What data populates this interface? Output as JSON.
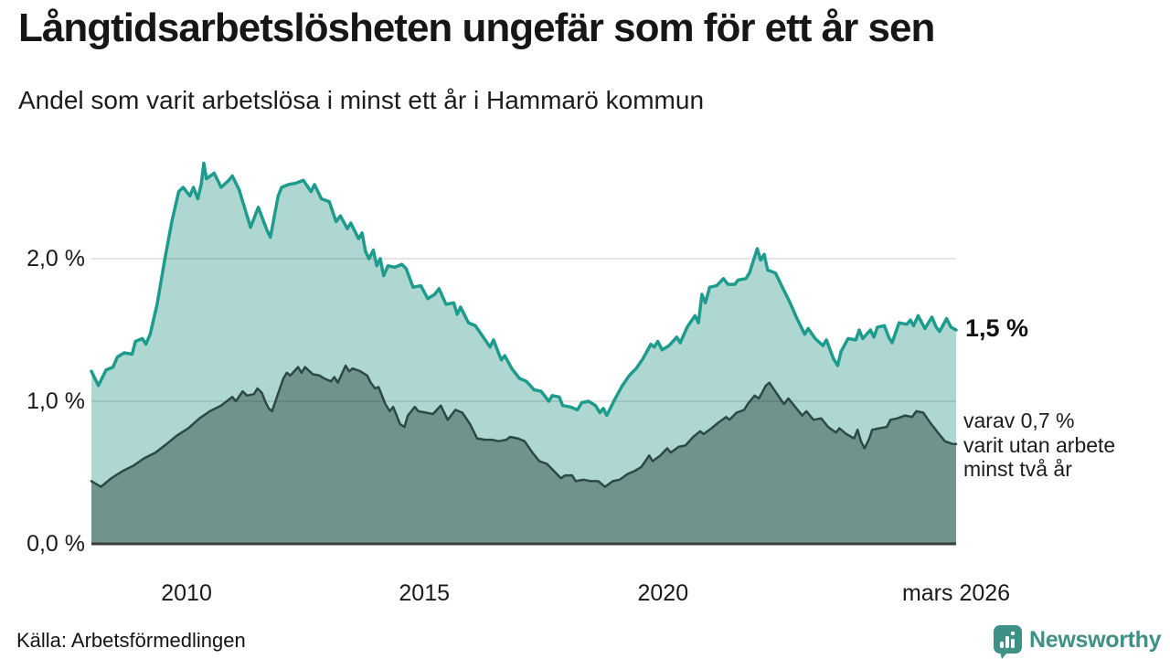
{
  "header": {
    "title": "Långtidsarbetslösheten ungefär som för ett år sen",
    "subtitle": "Andel som varit arbetslösa i minst ett år i Hammarö kommun"
  },
  "annotations": {
    "latest": {
      "label": "1,5 %"
    },
    "secondary": {
      "lines": [
        "varav 0,7 %",
        "varit utan arbete",
        "minst två år"
      ]
    }
  },
  "footer": {
    "source": "Källa: Arbetsförmedlingen",
    "brand": "Newsworthy"
  },
  "colors": {
    "line_one_year": "#1d9c8d",
    "fill_one_year": "#afd7d1",
    "line_two_year": "#2d4945",
    "fill_two_year": "#70948c",
    "gridline": "rgba(0,0,0,0.13)",
    "baseline": "#3b3b3b",
    "brand_teal": "#3f9086",
    "text": "#1a1a1a"
  },
  "chart_data": {
    "type": "area",
    "title": "Långtidsarbetslösheten ungefär som för ett år sen",
    "subtitle": "Andel som varit arbetslösa i minst ett år i Hammarö kommun",
    "xlabel": "",
    "ylabel": "",
    "x_range": [
      "januari 2008",
      "mars 2026"
    ],
    "ylim": [
      0,
      2.8
    ],
    "grid": true,
    "legend_position": "none",
    "y_ticks": [
      {
        "label": "0,0 %",
        "value": 0
      },
      {
        "label": "1,0 %",
        "value": 1
      },
      {
        "label": "2,0 %",
        "value": 2
      }
    ],
    "x_ticks": [
      {
        "label": "2010",
        "t": 0.11
      },
      {
        "label": "2015",
        "t": 0.385
      },
      {
        "label": "2020",
        "t": 0.661
      },
      {
        "label": "mars 2026",
        "t": 1.0
      }
    ],
    "series": [
      {
        "name": "Andel arbetslösa minst ett år",
        "latest_value": "1,5 %",
        "color": "#1d9c8d",
        "fill": "#afd7d1",
        "stroke_width": 3.5,
        "points": [
          [
            0,
            1.21
          ],
          [
            0.008,
            1.11
          ],
          [
            0.017,
            1.22
          ],
          [
            0.025,
            1.24
          ],
          [
            0.03,
            1.31
          ],
          [
            0.038,
            1.34
          ],
          [
            0.047,
            1.33
          ],
          [
            0.051,
            1.42
          ],
          [
            0.059,
            1.44
          ],
          [
            0.063,
            1.4
          ],
          [
            0.068,
            1.47
          ],
          [
            0.076,
            1.68
          ],
          [
            0.085,
            2
          ],
          [
            0.093,
            2.26
          ],
          [
            0.101,
            2.47
          ],
          [
            0.106,
            2.5
          ],
          [
            0.114,
            2.44
          ],
          [
            0.118,
            2.5
          ],
          [
            0.123,
            2.42
          ],
          [
            0.127,
            2.52
          ],
          [
            0.13,
            2.67
          ],
          [
            0.133,
            2.56
          ],
          [
            0.142,
            2.6
          ],
          [
            0.15,
            2.5
          ],
          [
            0.159,
            2.55
          ],
          [
            0.163,
            2.58
          ],
          [
            0.171,
            2.48
          ],
          [
            0.18,
            2.3
          ],
          [
            0.184,
            2.22
          ],
          [
            0.193,
            2.36
          ],
          [
            0.203,
            2.2
          ],
          [
            0.207,
            2.15
          ],
          [
            0.216,
            2.44
          ],
          [
            0.22,
            2.5
          ],
          [
            0.228,
            2.52
          ],
          [
            0.237,
            2.53
          ],
          [
            0.245,
            2.55
          ],
          [
            0.254,
            2.47
          ],
          [
            0.258,
            2.52
          ],
          [
            0.266,
            2.42
          ],
          [
            0.275,
            2.4
          ],
          [
            0.279,
            2.33
          ],
          [
            0.283,
            2.26
          ],
          [
            0.288,
            2.3
          ],
          [
            0.296,
            2.21
          ],
          [
            0.3,
            2.25
          ],
          [
            0.309,
            2.14
          ],
          [
            0.313,
            2.18
          ],
          [
            0.317,
            2.05
          ],
          [
            0.321,
            2
          ],
          [
            0.326,
            2.06
          ],
          [
            0.33,
            1.95
          ],
          [
            0.334,
            2
          ],
          [
            0.338,
            1.88
          ],
          [
            0.343,
            1.95
          ],
          [
            0.351,
            1.94
          ],
          [
            0.359,
            1.96
          ],
          [
            0.364,
            1.93
          ],
          [
            0.372,
            1.8
          ],
          [
            0.381,
            1.81
          ],
          [
            0.389,
            1.72
          ],
          [
            0.397,
            1.75
          ],
          [
            0.402,
            1.79
          ],
          [
            0.41,
            1.68
          ],
          [
            0.419,
            1.69
          ],
          [
            0.423,
            1.61
          ],
          [
            0.427,
            1.66
          ],
          [
            0.436,
            1.55
          ],
          [
            0.444,
            1.53
          ],
          [
            0.452,
            1.46
          ],
          [
            0.461,
            1.38
          ],
          [
            0.465,
            1.43
          ],
          [
            0.474,
            1.29
          ],
          [
            0.478,
            1.32
          ],
          [
            0.486,
            1.23
          ],
          [
            0.495,
            1.16
          ],
          [
            0.503,
            1.14
          ],
          [
            0.512,
            1.08
          ],
          [
            0.52,
            1.07
          ],
          [
            0.529,
            1
          ],
          [
            0.533,
            1.04
          ],
          [
            0.541,
            1.03
          ],
          [
            0.545,
            0.97
          ],
          [
            0.554,
            0.96
          ],
          [
            0.562,
            0.94
          ],
          [
            0.567,
            0.99
          ],
          [
            0.575,
            1
          ],
          [
            0.583,
            0.97
          ],
          [
            0.588,
            0.92
          ],
          [
            0.592,
            0.95
          ],
          [
            0.596,
            0.9
          ],
          [
            0.605,
            1.01
          ],
          [
            0.613,
            1.1
          ],
          [
            0.622,
            1.18
          ],
          [
            0.63,
            1.23
          ],
          [
            0.638,
            1.3
          ],
          [
            0.647,
            1.4
          ],
          [
            0.651,
            1.38
          ],
          [
            0.655,
            1.42
          ],
          [
            0.66,
            1.36
          ],
          [
            0.668,
            1.39
          ],
          [
            0.677,
            1.45
          ],
          [
            0.681,
            1.41
          ],
          [
            0.689,
            1.52
          ],
          [
            0.698,
            1.6
          ],
          [
            0.702,
            1.55
          ],
          [
            0.706,
            1.75
          ],
          [
            0.71,
            1.69
          ],
          [
            0.715,
            1.8
          ],
          [
            0.723,
            1.81
          ],
          [
            0.731,
            1.86
          ],
          [
            0.736,
            1.82
          ],
          [
            0.744,
            1.82
          ],
          [
            0.748,
            1.85
          ],
          [
            0.757,
            1.86
          ],
          [
            0.761,
            1.9
          ],
          [
            0.77,
            2.07
          ],
          [
            0.774,
            1.99
          ],
          [
            0.778,
            2.03
          ],
          [
            0.782,
            1.92
          ],
          [
            0.791,
            1.9
          ],
          [
            0.799,
            1.8
          ],
          [
            0.808,
            1.69
          ],
          [
            0.816,
            1.58
          ],
          [
            0.825,
            1.47
          ],
          [
            0.829,
            1.51
          ],
          [
            0.837,
            1.44
          ],
          [
            0.846,
            1.39
          ],
          [
            0.85,
            1.43
          ],
          [
            0.858,
            1.3
          ],
          [
            0.863,
            1.25
          ],
          [
            0.867,
            1.35
          ],
          [
            0.875,
            1.44
          ],
          [
            0.884,
            1.43
          ],
          [
            0.888,
            1.5
          ],
          [
            0.892,
            1.44
          ],
          [
            0.901,
            1.5
          ],
          [
            0.905,
            1.45
          ],
          [
            0.909,
            1.52
          ],
          [
            0.917,
            1.53
          ],
          [
            0.922,
            1.45
          ],
          [
            0.926,
            1.41
          ],
          [
            0.934,
            1.55
          ],
          [
            0.943,
            1.54
          ],
          [
            0.947,
            1.57
          ],
          [
            0.951,
            1.53
          ],
          [
            0.956,
            1.6
          ],
          [
            0.964,
            1.51
          ],
          [
            0.972,
            1.59
          ],
          [
            0.977,
            1.52
          ],
          [
            0.981,
            1.49
          ],
          [
            0.989,
            1.58
          ],
          [
            0.994,
            1.52
          ],
          [
            1,
            1.5
          ]
        ]
      },
      {
        "name": "varav utan arbete minst två år",
        "latest_value": "0,7 %",
        "color": "#2d4945",
        "fill": "#70948c",
        "stroke_width": 2.5,
        "points": [
          [
            0,
            0.44
          ],
          [
            0.011,
            0.4
          ],
          [
            0.023,
            0.46
          ],
          [
            0.036,
            0.51
          ],
          [
            0.049,
            0.55
          ],
          [
            0.061,
            0.6
          ],
          [
            0.074,
            0.64
          ],
          [
            0.087,
            0.7
          ],
          [
            0.099,
            0.76
          ],
          [
            0.112,
            0.81
          ],
          [
            0.125,
            0.88
          ],
          [
            0.137,
            0.93
          ],
          [
            0.15,
            0.97
          ],
          [
            0.163,
            1.03
          ],
          [
            0.167,
            1
          ],
          [
            0.175,
            1.07
          ],
          [
            0.18,
            1.04
          ],
          [
            0.188,
            1.05
          ],
          [
            0.192,
            1.09
          ],
          [
            0.197,
            1.06
          ],
          [
            0.201,
            1
          ],
          [
            0.205,
            0.95
          ],
          [
            0.209,
            0.93
          ],
          [
            0.214,
            1.02
          ],
          [
            0.222,
            1.16
          ],
          [
            0.226,
            1.2
          ],
          [
            0.23,
            1.18
          ],
          [
            0.239,
            1.24
          ],
          [
            0.243,
            1.2
          ],
          [
            0.247,
            1.24
          ],
          [
            0.256,
            1.19
          ],
          [
            0.264,
            1.18
          ],
          [
            0.269,
            1.16
          ],
          [
            0.277,
            1.14
          ],
          [
            0.281,
            1.17
          ],
          [
            0.285,
            1.13
          ],
          [
            0.294,
            1.25
          ],
          [
            0.298,
            1.21
          ],
          [
            0.302,
            1.23
          ],
          [
            0.311,
            1.21
          ],
          [
            0.319,
            1.18
          ],
          [
            0.323,
            1.13
          ],
          [
            0.328,
            1.09
          ],
          [
            0.332,
            1.1
          ],
          [
            0.34,
            0.98
          ],
          [
            0.345,
            0.93
          ],
          [
            0.349,
            0.96
          ],
          [
            0.357,
            0.84
          ],
          [
            0.362,
            0.82
          ],
          [
            0.366,
            0.9
          ],
          [
            0.374,
            0.96
          ],
          [
            0.378,
            0.93
          ],
          [
            0.387,
            0.92
          ],
          [
            0.395,
            0.91
          ],
          [
            0.404,
            0.97
          ],
          [
            0.412,
            0.87
          ],
          [
            0.421,
            0.94
          ],
          [
            0.429,
            0.92
          ],
          [
            0.438,
            0.84
          ],
          [
            0.446,
            0.74
          ],
          [
            0.455,
            0.73
          ],
          [
            0.463,
            0.73
          ],
          [
            0.471,
            0.72
          ],
          [
            0.48,
            0.73
          ],
          [
            0.484,
            0.75
          ],
          [
            0.493,
            0.74
          ],
          [
            0.501,
            0.72
          ],
          [
            0.51,
            0.64
          ],
          [
            0.518,
            0.58
          ],
          [
            0.527,
            0.56
          ],
          [
            0.535,
            0.51
          ],
          [
            0.543,
            0.46
          ],
          [
            0.548,
            0.48
          ],
          [
            0.556,
            0.48
          ],
          [
            0.56,
            0.44
          ],
          [
            0.569,
            0.45
          ],
          [
            0.577,
            0.44
          ],
          [
            0.586,
            0.44
          ],
          [
            0.594,
            0.4
          ],
          [
            0.603,
            0.44
          ],
          [
            0.611,
            0.45
          ],
          [
            0.62,
            0.49
          ],
          [
            0.628,
            0.51
          ],
          [
            0.636,
            0.54
          ],
          [
            0.645,
            0.62
          ],
          [
            0.649,
            0.58
          ],
          [
            0.658,
            0.62
          ],
          [
            0.666,
            0.67
          ],
          [
            0.67,
            0.64
          ],
          [
            0.679,
            0.68
          ],
          [
            0.687,
            0.69
          ],
          [
            0.696,
            0.75
          ],
          [
            0.704,
            0.79
          ],
          [
            0.708,
            0.77
          ],
          [
            0.717,
            0.81
          ],
          [
            0.725,
            0.85
          ],
          [
            0.734,
            0.89
          ],
          [
            0.738,
            0.87
          ],
          [
            0.746,
            0.92
          ],
          [
            0.755,
            0.94
          ],
          [
            0.759,
            0.98
          ],
          [
            0.767,
            1.04
          ],
          [
            0.772,
            1.02
          ],
          [
            0.78,
            1.11
          ],
          [
            0.784,
            1.13
          ],
          [
            0.793,
            1.05
          ],
          [
            0.801,
            0.98
          ],
          [
            0.806,
            1.02
          ],
          [
            0.814,
            0.96
          ],
          [
            0.822,
            0.9
          ],
          [
            0.827,
            0.93
          ],
          [
            0.835,
            0.87
          ],
          [
            0.844,
            0.88
          ],
          [
            0.852,
            0.82
          ],
          [
            0.861,
            0.78
          ],
          [
            0.865,
            0.81
          ],
          [
            0.873,
            0.77
          ],
          [
            0.882,
            0.74
          ],
          [
            0.886,
            0.8
          ],
          [
            0.89,
            0.72
          ],
          [
            0.894,
            0.67
          ],
          [
            0.899,
            0.73
          ],
          [
            0.903,
            0.8
          ],
          [
            0.911,
            0.81
          ],
          [
            0.92,
            0.82
          ],
          [
            0.924,
            0.87
          ],
          [
            0.932,
            0.88
          ],
          [
            0.941,
            0.9
          ],
          [
            0.949,
            0.89
          ],
          [
            0.954,
            0.93
          ],
          [
            0.962,
            0.92
          ],
          [
            0.97,
            0.85
          ],
          [
            0.979,
            0.78
          ],
          [
            0.987,
            0.72
          ],
          [
            0.996,
            0.7
          ],
          [
            1,
            0.7
          ]
        ]
      }
    ]
  }
}
